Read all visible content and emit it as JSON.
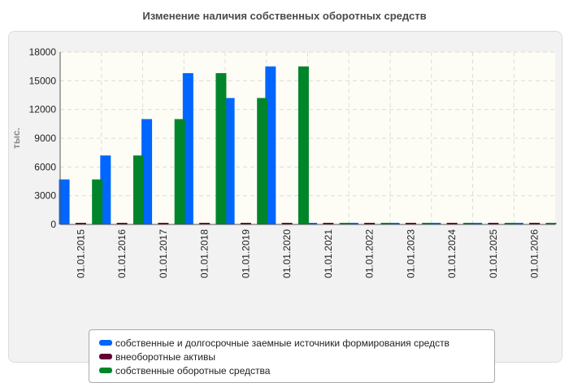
{
  "chart_data": {
    "type": "bar",
    "title": "Изменение наличия собственных оборотных средств",
    "ylabel": "тыс.",
    "xlabel": "",
    "ylim": [
      0,
      18000
    ],
    "yticks": [
      "0",
      "3000",
      "6000",
      "9000",
      "12000",
      "15000",
      "18000"
    ],
    "grid": true,
    "legend_position": "bottom",
    "categories": [
      "01.01.2015",
      "01.01.2016",
      "01.01.2017",
      "01.01.2018",
      "01.01.2019",
      "01.01.2020",
      "01.01.2021",
      "01.01.2022",
      "01.01.2023",
      "01.01.2024",
      "01.01.2025",
      "01.01.2026"
    ],
    "series": [
      {
        "name": "собственные и долгосрочные заемные источники формирования средств",
        "color": "#0066ff",
        "values": [
          4700,
          7200,
          11000,
          15800,
          13200,
          16500,
          0,
          0,
          0,
          0,
          0,
          0
        ]
      },
      {
        "name": "внеоборотные активы",
        "color": "#660033",
        "values": [
          0,
          0,
          0,
          0,
          0,
          0,
          0,
          0,
          0,
          0,
          0,
          0
        ]
      },
      {
        "name": "собственные оборотные средства",
        "color": "#00852a",
        "values": [
          4700,
          7200,
          11000,
          15800,
          13200,
          16500,
          0,
          0,
          0,
          0,
          0,
          0
        ]
      }
    ]
  }
}
